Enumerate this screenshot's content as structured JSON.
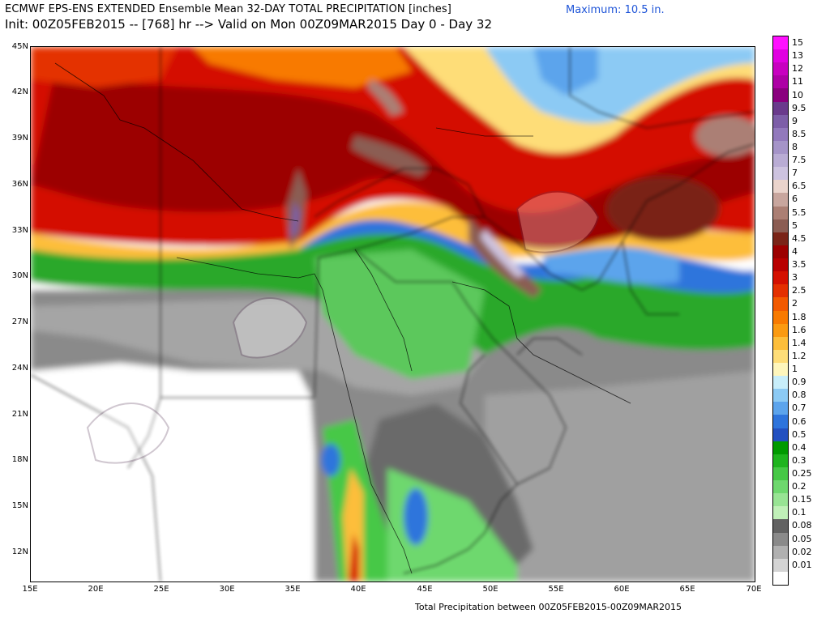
{
  "header": {
    "title": "ECMWF EPS-ENS EXTENDED Ensemble Mean 32-DAY TOTAL PRECIPITATION [inches]",
    "subtitle": "Init: 00Z05FEB2015 -- [768] hr --> Valid on Mon 00Z09MAR2015   Day 0 - Day 32",
    "maximum": "Maximum:  10.5 in."
  },
  "footer": "Total Precipitation between 00Z05FEB2015-00Z09MAR2015",
  "map": {
    "lat_labels": [
      "45N",
      "42N",
      "39N",
      "36N",
      "33N",
      "30N",
      "27N",
      "24N",
      "21N",
      "18N",
      "15N",
      "12N"
    ],
    "lon_labels": [
      "15E",
      "20E",
      "25E",
      "30E",
      "35E",
      "40E",
      "45E",
      "50E",
      "55E",
      "60E",
      "65E",
      "70E"
    ],
    "lat_range": [
      10,
      45
    ],
    "lon_range": [
      15,
      70
    ]
  },
  "legend": {
    "values": [
      "15",
      "13",
      "12",
      "11",
      "10",
      "9.5",
      "9",
      "8.5",
      "8",
      "7.5",
      "7",
      "6.5",
      "6",
      "5.5",
      "5",
      "4.5",
      "4",
      "3.5",
      "3",
      "2.5",
      "2",
      "1.8",
      "1.6",
      "1.4",
      "1.2",
      "1",
      "0.9",
      "0.8",
      "0.7",
      "0.6",
      "0.5",
      "0.4",
      "0.3",
      "0.25",
      "0.2",
      "0.15",
      "0.1",
      "0.08",
      "0.05",
      "0.02",
      "0.01"
    ],
    "colors": [
      "#ff10ff",
      "#e000e0",
      "#c800c0",
      "#ad00a5",
      "#8a007e",
      "#6a3a8c",
      "#7d5ea8",
      "#9279bc",
      "#a594c8",
      "#b9acd4",
      "#cdc3df",
      "#ead4cc",
      "#c8a69e",
      "#ab7f74",
      "#8b5d53",
      "#7a2418",
      "#9c0000",
      "#b80000",
      "#d41000",
      "#e43000",
      "#f25a00",
      "#f87a00",
      "#fb9a10",
      "#fdbe3a",
      "#fedd78",
      "#fef6bc",
      "#c8eefa",
      "#8ccaf4",
      "#5ca4ec",
      "#2e74dc",
      "#2350c0",
      "#009a00",
      "#1eb41e",
      "#46c846",
      "#6ed86e",
      "#98e494",
      "#c0f0b8",
      "#626262",
      "#8a8a8a",
      "#b0b0b0",
      "#d4d4d4",
      "#ffffff"
    ]
  }
}
